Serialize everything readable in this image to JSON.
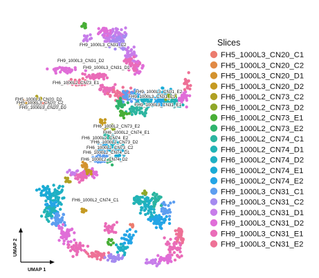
{
  "chart_data": {
    "type": "scatter",
    "title": "",
    "xlabel": "UMAP 1",
    "ylabel": "UMAP 2",
    "grid": false,
    "legend": {
      "title": "Slices",
      "placement": "right"
    },
    "series": [
      {
        "name": "FH5_1000L3_CN20_C1",
        "color": "#EC7C6E"
      },
      {
        "name": "FH5_1000L3_CN20_C2",
        "color": "#E18A45"
      },
      {
        "name": "FH5_1000L3_CN20_D1",
        "color": "#D3922E"
      },
      {
        "name": "FH5_1000L3_CN20_D2",
        "color": "#C59A22"
      },
      {
        "name": "FH6_1000L2_CN73_C2",
        "color": "#AFA023"
      },
      {
        "name": "FH6_1000L2_CN73_D2",
        "color": "#8FA728"
      },
      {
        "name": "FH6_1000L2_CN73_E1",
        "color": "#48AE36"
      },
      {
        "name": "FH6_1000L2_CN73_E2",
        "color": "#2FB46D"
      },
      {
        "name": "FH6_1000L2_CN74_C1",
        "color": "#2CB5A0"
      },
      {
        "name": "FH6_1000L2_CN74_D1",
        "color": "#22B3B5"
      },
      {
        "name": "FH6_1000L2_CN74_D2",
        "color": "#1FB0C4"
      },
      {
        "name": "FH6_1000L2_CN74_E1",
        "color": "#1AABD6"
      },
      {
        "name": "FH6_1000L2_CN74_E2",
        "color": "#24A5E6"
      },
      {
        "name": "FH9_1000L3_CN31_C1",
        "color": "#5D9EF0"
      },
      {
        "name": "FH9_1000L3_CN31_C2",
        "color": "#A58BF0"
      },
      {
        "name": "FH9_1000L3_CN31_D1",
        "color": "#C77DEA"
      },
      {
        "name": "FH9_1000L3_CN31_D2",
        "color": "#E06ED8"
      },
      {
        "name": "FH9_1000L3_CN31_E1",
        "color": "#EA6CB8"
      },
      {
        "name": "FH9_1000L3_CN31_E2",
        "color": "#EE7196"
      }
    ],
    "annotations": [
      "FH9_1000L3_CN31_C2",
      "FH9_1000L3_CN31_D2",
      "FH9_1000L3_CN31_D1",
      "FH6_1000L2_CN73_E1",
      "FH9_1000L3_CN31_E2",
      "FH9_1000L3_CN31_C1",
      "FH9_1000L3_CN31_E1",
      "FH5_1000L3_CN20_D2",
      "FH5_1000L3_CN20_C2",
      "FH5_1000L3_CN20_C1",
      "FH5_1000L3_CN20_D1",
      "FH6_1000L2_CN73_E2",
      "FH6_1000L2_CN74_E1",
      "FH6_1000L2_CN74_E2",
      "FH6_1000L2_CN73_D2",
      "FH6_1000L2_CN73_C2",
      "FH6_1000L2_CN74_D1",
      "FH6_1000L2_CN74_D2",
      "FH6_1000L2_CN74_C1"
    ]
  }
}
